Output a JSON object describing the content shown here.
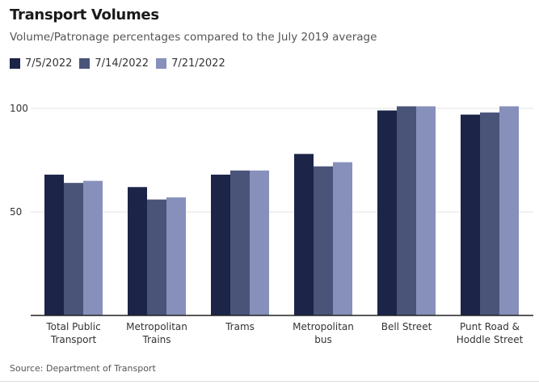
{
  "title": "Transport Volumes",
  "subtitle": "Volume/Patronage percentages compared to the July 2019 average",
  "source": "Source: Department of Transport",
  "chart_data": {
    "type": "bar",
    "categories": [
      [
        "Total Public",
        "Transport"
      ],
      [
        "Metropolitan",
        "Trains"
      ],
      [
        "Trams"
      ],
      [
        "Metropolitan",
        "bus"
      ],
      [
        "Bell Street"
      ],
      [
        "Punt Road &",
        "Hoddle Street"
      ]
    ],
    "series": [
      {
        "name": "7/5/2022",
        "color": "#1c2448",
        "values": [
          68,
          62,
          68,
          78,
          99,
          97
        ]
      },
      {
        "name": "7/14/2022",
        "color": "#4a5479",
        "values": [
          64,
          56,
          70,
          72,
          101,
          98
        ]
      },
      {
        "name": "7/21/2022",
        "color": "#8790bb",
        "values": [
          65,
          57,
          70,
          74,
          101,
          101
        ]
      }
    ],
    "yticks": [
      50,
      100
    ],
    "ylim": [
      0,
      101
    ],
    "grid": true,
    "legend_position": "top-left"
  }
}
